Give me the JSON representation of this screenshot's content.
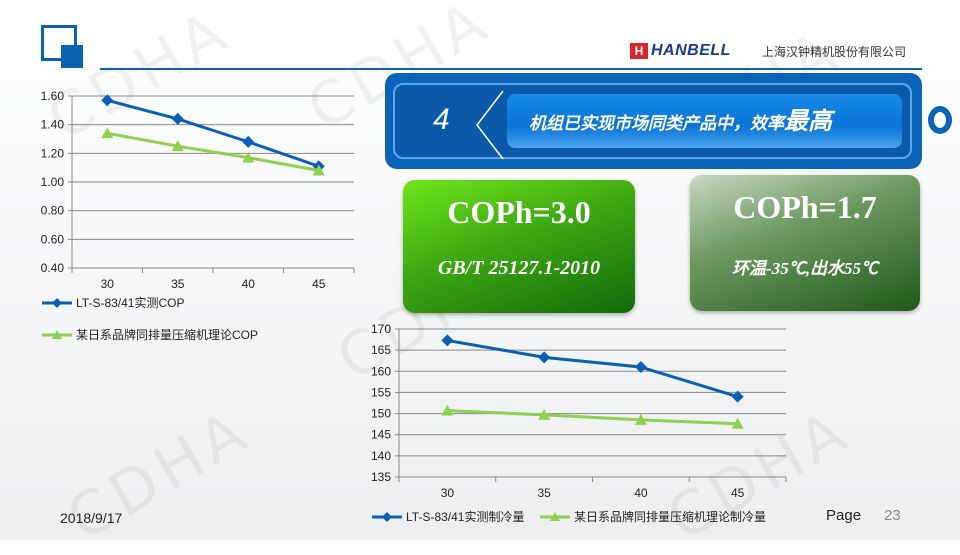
{
  "header": {
    "brand": "HANBELL",
    "brand_mark": "H",
    "company": "上海汉钟精机股份有限公司"
  },
  "watermark": "CDHA",
  "banner": {
    "number": "4",
    "text": "机组已实现市场同类产品中，效率",
    "text_emphasis": "最高"
  },
  "cards": [
    {
      "title": "COPh=3.0",
      "subtitle": "GB/T 25127.1-2010"
    },
    {
      "title": "COPh=1.7",
      "subtitle": "环温-35℃,出水55℃"
    }
  ],
  "footer": {
    "date": "2018/9/17",
    "page_label": "Page",
    "page_number": "23"
  },
  "colors": {
    "primary": "#0a62b0",
    "series_blue": "#0a5fb4",
    "series_green": "#8fd14f"
  },
  "chart_data": [
    {
      "type": "line",
      "categories": [
        "30",
        "35",
        "40",
        "45"
      ],
      "ylim": [
        0.4,
        1.6
      ],
      "yticks": [
        "0.40",
        "0.60",
        "0.80",
        "1.00",
        "1.20",
        "1.40",
        "1.60"
      ],
      "grid": true,
      "legend": "bottom",
      "series": [
        {
          "name": "LT-S-83/41实测COP",
          "values": [
            1.57,
            1.44,
            1.28,
            1.11
          ],
          "marker": "diamond"
        },
        {
          "name": "某日系品牌同排量压缩机理论COP",
          "values": [
            1.34,
            1.25,
            1.17,
            1.08
          ],
          "marker": "triangle"
        }
      ]
    },
    {
      "type": "line",
      "categories": [
        "30",
        "35",
        "40",
        "45"
      ],
      "ylim": [
        135,
        170
      ],
      "yticks": [
        "135",
        "140",
        "145",
        "150",
        "155",
        "160",
        "165",
        "170"
      ],
      "grid": true,
      "legend": "bottom",
      "series": [
        {
          "name": "LT-S-83/41实测制冷量",
          "values": [
            167.3,
            163.3,
            161.0,
            154.0
          ],
          "marker": "diamond"
        },
        {
          "name": "某日系品牌同排量压缩机理论制冷量",
          "values": [
            150.7,
            149.7,
            148.5,
            147.6
          ],
          "marker": "triangle"
        }
      ]
    }
  ]
}
